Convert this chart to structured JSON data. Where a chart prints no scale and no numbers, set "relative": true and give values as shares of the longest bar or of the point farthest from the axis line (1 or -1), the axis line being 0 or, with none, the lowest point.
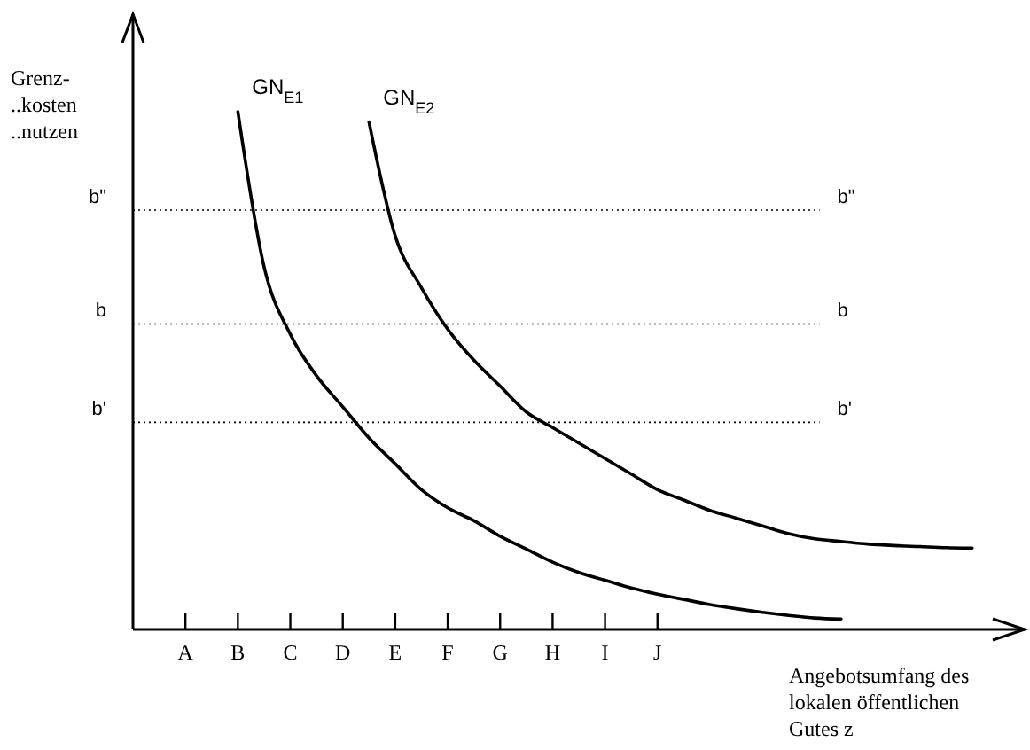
{
  "chart_data": {
    "type": "line",
    "relative": true,
    "xlabel": "Angebotsumfang des\nlokalen öffentlichen\nGutes z",
    "ylabel": "Grenz-\n..kosten\n..nutzen",
    "categories": [
      null,
      "A",
      null,
      "B",
      null,
      "C",
      null,
      "D",
      null,
      "E",
      null,
      "F",
      null,
      "G",
      null,
      "H",
      null,
      "I",
      null,
      "J",
      null,
      null,
      null,
      null,
      null,
      null,
      null,
      null,
      null,
      null,
      null,
      null,
      null
    ],
    "series": [
      {
        "name": "GN$_{E1}$",
        "color": "#000000",
        "values": [
          null,
          null,
          null,
          1,
          0.7,
          0.57,
          0.49,
          0.43,
          0.37,
          0.32,
          0.27,
          0.235,
          0.21,
          0.18,
          0.155,
          0.13,
          0.11,
          0.095,
          0.08,
          0.068,
          0.058,
          0.048,
          0.04,
          0.033,
          0.027,
          0.022,
          0.02,
          null,
          null,
          null,
          null,
          null,
          null
        ]
      },
      {
        "name": "GN$_{E2}$",
        "color": "#000000",
        "values": [
          null,
          null,
          null,
          null,
          null,
          null,
          null,
          null,
          0.98,
          0.76,
          0.66,
          0.58,
          0.52,
          0.47,
          0.42,
          0.39,
          0.36,
          0.33,
          0.3,
          0.27,
          0.25,
          0.23,
          0.215,
          0.2,
          0.185,
          0.175,
          0.17,
          0.165,
          0.162,
          0.16,
          0.158,
          0.157,
          null
        ]
      }
    ],
    "ref_lines": [
      {
        "axis": "y",
        "value": 0.81,
        "label": "b\""
      },
      {
        "axis": "y",
        "value": 0.59,
        "label": "b"
      },
      {
        "axis": "y",
        "value": 0.4,
        "label": "b'"
      }
    ],
    "marker": "none",
    "line_style": "solid",
    "legend": false,
    "grid": false
  }
}
